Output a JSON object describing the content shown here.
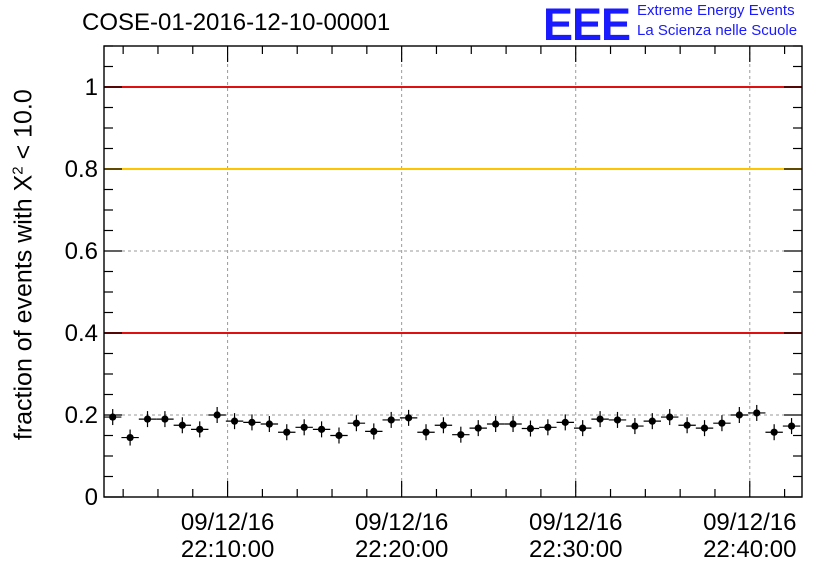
{
  "chart_data": {
    "type": "scatter",
    "title": "COSE-01-2016-12-10-00001",
    "ylabel_prefix": "fraction of events with X",
    "ylabel_sup": "2",
    "ylabel_suffix": " < 10.0",
    "xlabel": "",
    "ylim": [
      0,
      1.1
    ],
    "y_ticks": [
      {
        "value": 0,
        "label": "0"
      },
      {
        "value": 0.2,
        "label": "0.2"
      },
      {
        "value": 0.4,
        "label": "0.4"
      },
      {
        "value": 0.6,
        "label": "0.6"
      },
      {
        "value": 0.8,
        "label": "0.8"
      },
      {
        "value": 1,
        "label": "1"
      }
    ],
    "x_range_minutes": [
      2.9,
      43.0
    ],
    "x_ticks": [
      {
        "minute": 10,
        "date": "09/12/16",
        "time": "22:10:00"
      },
      {
        "minute": 20,
        "date": "09/12/16",
        "time": "22:20:00"
      },
      {
        "minute": 30,
        "date": "09/12/16",
        "time": "22:30:00"
      },
      {
        "minute": 40,
        "date": "09/12/16",
        "time": "22:40:00"
      }
    ],
    "reference_lines": [
      {
        "y": 1.0,
        "color": "#e01010"
      },
      {
        "y": 0.8,
        "color": "#ffc400"
      },
      {
        "y": 0.4,
        "color": "#e01010"
      }
    ],
    "grid": true,
    "x_bin_width_minutes": 1.0,
    "series": [
      {
        "color": "#000000",
        "x": [
          3.4,
          4.4,
          5.4,
          6.4,
          7.4,
          8.4,
          9.4,
          10.4,
          11.4,
          12.4,
          13.4,
          14.4,
          15.4,
          16.4,
          17.4,
          18.4,
          19.4,
          20.4,
          21.4,
          22.4,
          23.4,
          24.4,
          25.4,
          26.4,
          27.4,
          28.4,
          29.4,
          30.4,
          31.4,
          32.4,
          33.4,
          34.4,
          35.4,
          36.4,
          37.4,
          38.4,
          39.4,
          40.4,
          41.4,
          42.4
        ],
        "y": [
          0.195,
          0.145,
          0.19,
          0.19,
          0.175,
          0.165,
          0.2,
          0.185,
          0.182,
          0.178,
          0.158,
          0.17,
          0.165,
          0.15,
          0.18,
          0.16,
          0.188,
          0.193,
          0.158,
          0.175,
          0.152,
          0.168,
          0.178,
          0.178,
          0.167,
          0.17,
          0.182,
          0.168,
          0.19,
          0.188,
          0.173,
          0.185,
          0.195,
          0.175,
          0.168,
          0.18,
          0.2,
          0.205,
          0.158,
          0.173
        ]
      }
    ]
  },
  "logo": {
    "mark": "EEE",
    "line1": "Extreme Energy Events",
    "line2": "La Scienza nelle Scuole"
  }
}
